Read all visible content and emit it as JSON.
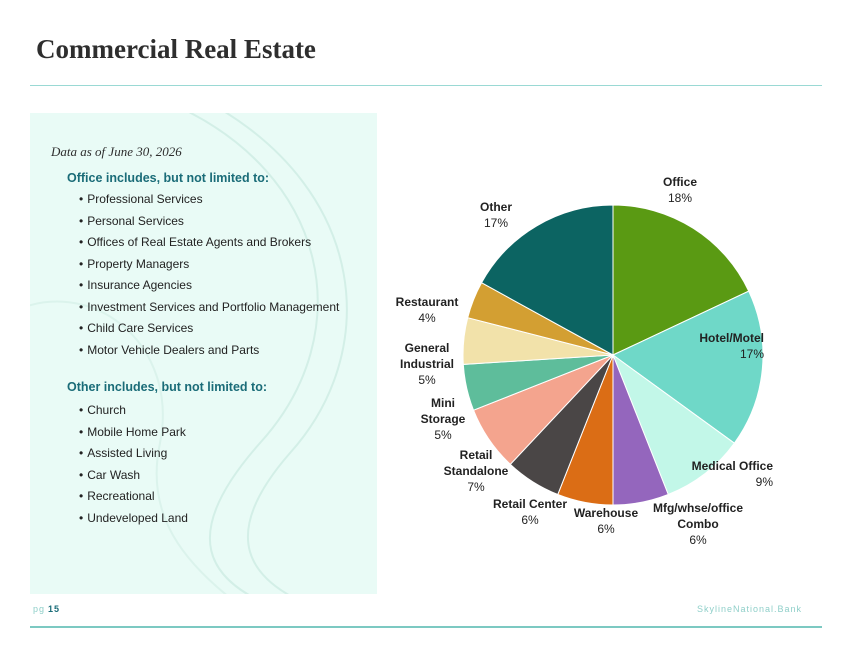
{
  "page": {
    "title": "Commercial Real Estate",
    "date_note": "Data as of June 30, 2026",
    "office_heading": "Office includes, but not limited to:",
    "office_items": [
      "Professional Services",
      "Personal Services",
      "Offices of Real Estate Agents and Brokers",
      "Property Managers",
      "Insurance Agencies",
      "Investment Services and Portfolio Management",
      "Child Care Services",
      "Motor Vehicle Dealers and Parts"
    ],
    "other_heading": "Other includes, but not limited to:",
    "other_items": [
      "Church",
      "Mobile Home Park",
      "Assisted Living",
      "Car Wash",
      "Recreational",
      "Undeveloped Land"
    ],
    "footer": {
      "page_prefix": "pg",
      "page_number": "15",
      "brand": "SkylineNational.Bank"
    }
  },
  "chart_data": {
    "type": "pie",
    "title": "",
    "slices": [
      {
        "label": "Office",
        "value": 18,
        "value_label": "18%",
        "color": "#5a9a13"
      },
      {
        "label": "Hotel/Motel",
        "value": 17,
        "value_label": "17%",
        "color": "#6fd8c8"
      },
      {
        "label": "Medical Office",
        "value": 9,
        "value_label": "9%",
        "color": "#c2f7e8"
      },
      {
        "label": "Mfg/whse/office Combo",
        "value": 6,
        "value_label": "6%",
        "color": "#9466bd"
      },
      {
        "label": "Warehouse",
        "value": 6,
        "value_label": "6%",
        "color": "#db6d15"
      },
      {
        "label": "Retail Center",
        "value": 6,
        "value_label": "6%",
        "color": "#4a4646"
      },
      {
        "label": "Retail Standalone",
        "value": 7,
        "value_label": "7%",
        "color": "#f4a48e"
      },
      {
        "label": "Mini Storage",
        "value": 5,
        "value_label": "5%",
        "color": "#5ebd9b"
      },
      {
        "label": "General Industrial",
        "value": 5,
        "value_label": "5%",
        "color": "#f2e2aa"
      },
      {
        "label": "Restaurant",
        "value": 4,
        "value_label": "4%",
        "color": "#d39f32"
      },
      {
        "label": "Other",
        "value": 17,
        "value_label": "17%",
        "color": "#0c6462"
      }
    ]
  }
}
